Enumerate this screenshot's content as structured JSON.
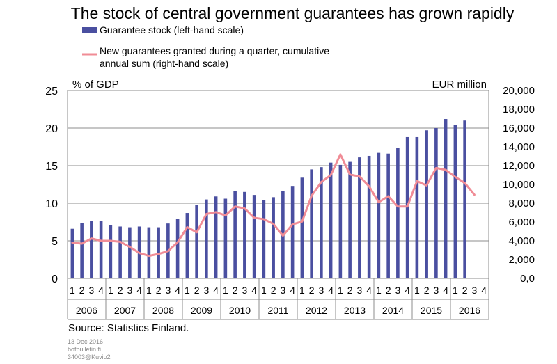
{
  "chart_data": {
    "type": "bar+line",
    "title": "The stock of central government guarantees has grown rapidly",
    "legend": [
      {
        "label": "Guarantee stock (left-hand scale)",
        "color": "#4a4fa0",
        "kind": "bar"
      },
      {
        "label_lines": [
          "New guarantees granted during a quarter, cumulative",
          "annual sum  (right-hand scale)"
        ],
        "color": "#f08c96",
        "kind": "line"
      }
    ],
    "left_axis": {
      "title": "% of GDP",
      "ylim": [
        0,
        25
      ],
      "ticks": [
        "0",
        "5",
        "10",
        "15",
        "20",
        "25"
      ]
    },
    "right_axis": {
      "title": "EUR million",
      "ylim": [
        0,
        20000
      ],
      "ticks": [
        "0,0",
        "2,000",
        "4,000",
        "6,000",
        "8,000",
        "10,000",
        "12,000",
        "14,000",
        "16,000",
        "18,000",
        "20,000"
      ]
    },
    "years": [
      "2006",
      "2007",
      "2008",
      "2009",
      "2010",
      "2011",
      "2012",
      "2013",
      "2014",
      "2015",
      "2016"
    ],
    "quarter_labels": [
      "1",
      "2",
      "3",
      "4"
    ],
    "grid": true,
    "bar_series": {
      "name": "Guarantee stock (left-hand scale)",
      "values": [
        6.6,
        7.4,
        7.6,
        7.6,
        7.1,
        6.9,
        6.8,
        6.9,
        6.8,
        6.8,
        7.3,
        7.9,
        8.7,
        9.8,
        10.5,
        10.9,
        10.6,
        11.6,
        11.5,
        11.1,
        10.4,
        10.8,
        11.6,
        12.3,
        13.4,
        14.5,
        14.8,
        15.4,
        15.1,
        15.5,
        16.1,
        16.3,
        16.7,
        16.6,
        17.4,
        18.8,
        18.8,
        19.7,
        20.0,
        21.2,
        20.4,
        21.0,
        null,
        null
      ]
    },
    "line_series": {
      "name": "New guarantees granted during a quarter, cumulative annual sum (right-hand scale)",
      "values": [
        3800,
        3700,
        4250,
        4000,
        4000,
        3900,
        3350,
        2700,
        2400,
        2600,
        2900,
        3850,
        5450,
        4900,
        6850,
        7050,
        6700,
        7650,
        7450,
        6450,
        6300,
        5800,
        4550,
        5750,
        6050,
        8800,
        10250,
        11000,
        13200,
        11050,
        10850,
        9800,
        8100,
        8750,
        7650,
        7650,
        10350,
        9900,
        11750,
        11550,
        10800,
        10150,
        8900
      ]
    }
  },
  "source": "Source: Statistics Finland.",
  "meta": [
    "13 Dec 2016",
    "bofbulletin.fi",
    "34003@Kuvio2"
  ]
}
